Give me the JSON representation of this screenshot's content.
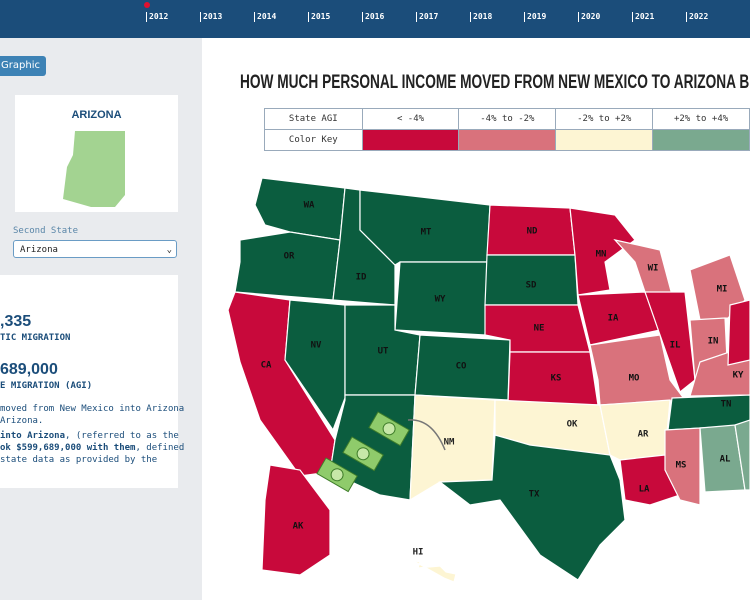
{
  "timeline": {
    "years": [
      "2012",
      "2013",
      "2014",
      "2015",
      "2016",
      "2017",
      "2018",
      "2019",
      "2020",
      "2021",
      "2022"
    ]
  },
  "sidebar": {
    "button": "Graphic",
    "state_card_title": "ARIZONA",
    "select_label": "Second State",
    "select_value": "Arizona",
    "stats": [
      ",335",
      "TIC MIGRATION",
      "689,000",
      "E MIGRATION (AGI)"
    ],
    "paragraph1": [
      "moved from New Mexico into Arizona",
      "Arizona."
    ],
    "paragraph2": [
      {
        "bold": "into Arizona",
        "text": ", (referred to as the"
      },
      {
        "bold": "ok $599,689,000 with them",
        "text": ", defined"
      },
      {
        "text": "state data as provided by the"
      }
    ]
  },
  "main": {
    "title": "HOW MUCH PERSONAL INCOME MOVED FROM NEW MEXICO TO ARIZONA BETW",
    "legend": {
      "header": "State AGI",
      "row_label": "Color Key",
      "columns": [
        {
          "label": "< -4%",
          "color": "#c8093b"
        },
        {
          "label": "-4% to -2%",
          "color": "#d9727c"
        },
        {
          "label": "-2% to +2%",
          "color": "#fdf5d3"
        },
        {
          "label": "+2% to +4%",
          "color": "#7aa98f"
        }
      ]
    },
    "states": [
      {
        "label": "WA",
        "color": "#0b5d3f"
      },
      {
        "label": "OR",
        "color": "#0b5d3f"
      },
      {
        "label": "CA",
        "color": "#c8093b"
      },
      {
        "label": "NV",
        "color": "#0b5d3f"
      },
      {
        "label": "ID",
        "color": "#0b5d3f"
      },
      {
        "label": "MT",
        "color": "#0b5d3f"
      },
      {
        "label": "WY",
        "color": "#0b5d3f"
      },
      {
        "label": "UT",
        "color": "#0b5d3f"
      },
      {
        "label": null,
        "color": "#0b5d3f"
      },
      {
        "label": "CO",
        "color": "#0b5d3f"
      },
      {
        "label": "NM",
        "color": "#fdf5d3"
      },
      {
        "label": "ND",
        "color": "#c8093b"
      },
      {
        "label": "SD",
        "color": "#0b5d3f"
      },
      {
        "label": "NE",
        "color": "#c8093b"
      },
      {
        "label": "KS",
        "color": "#c8093b"
      },
      {
        "label": "OK",
        "color": "#fdf5d3"
      },
      {
        "label": "TX",
        "color": "#0b5d3f"
      },
      {
        "label": "MN",
        "color": "#c8093b"
      },
      {
        "label": "IA",
        "color": "#c8093b"
      },
      {
        "label": "WI",
        "color": "#d9727c"
      },
      {
        "label": "MO",
        "color": "#d9727c"
      },
      {
        "label": "AR",
        "color": "#fdf5d3"
      },
      {
        "label": "LA",
        "color": "#c8093b"
      },
      {
        "label": "IL",
        "color": "#c8093b"
      },
      {
        "label": "MI",
        "color": "#d9727c"
      },
      {
        "label": "IN",
        "color": "#d9727c"
      },
      {
        "label": "KY",
        "color": "#d9727c"
      },
      {
        "label": "TN",
        "color": "#0b5d3f"
      },
      {
        "label": "MS",
        "color": "#d9727c"
      },
      {
        "label": "AL",
        "color": "#7aa98f"
      },
      {
        "label": null,
        "color": "#7aa98f"
      },
      {
        "label": null,
        "color": "#c8093b"
      },
      {
        "label": "AK",
        "color": "#c8093b"
      },
      {
        "label": "HI",
        "color": "#fdf5d3"
      }
    ]
  }
}
